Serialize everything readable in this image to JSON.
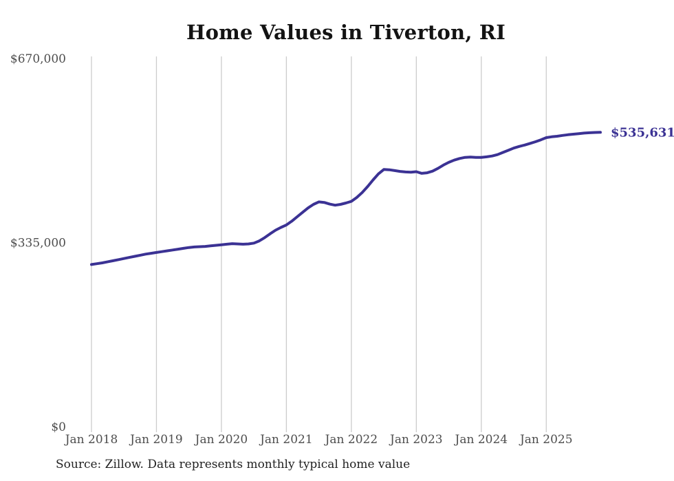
{
  "chart": {
    "title": "Home Values in Tiverton, RI",
    "source_note": "Source: Zillow. Data represents monthly typical home value",
    "end_label": "$535,631",
    "colors": {
      "line": "#3b3294",
      "grid": "#cccccc",
      "axis_label": "#4d4d4d",
      "title": "#131313",
      "source": "#222222"
    }
  },
  "chart_data": {
    "type": "line",
    "title": "Home Values in Tiverton, RI",
    "xlabel": "",
    "ylabel": "",
    "ylim": [
      0,
      670000
    ],
    "grid": "vertical-yearly",
    "legend": false,
    "y_ticks": [
      {
        "value": 0,
        "label": "$0"
      },
      {
        "value": 335000,
        "label": "$335,000"
      },
      {
        "value": 670000,
        "label": "$670,000"
      }
    ],
    "x_tick_labels": [
      "Jan 2018",
      "Jan 2019",
      "Jan 2020",
      "Jan 2021",
      "Jan 2022",
      "Jan 2023",
      "Jan 2024",
      "Jan 2025"
    ],
    "x_tick_month_indexes": [
      0,
      12,
      24,
      36,
      48,
      60,
      72,
      84
    ],
    "end_value": 535631,
    "end_value_label": "$535,631",
    "series": [
      {
        "name": "Monthly typical home value",
        "start_month": "Jan 2018",
        "end_month": "Nov 2025",
        "values": [
          295000,
          296500,
          298000,
          300000,
          302000,
          304000,
          306000,
          308000,
          310000,
          312000,
          314000,
          315500,
          317000,
          318500,
          320000,
          321500,
          323000,
          324500,
          326000,
          327000,
          327500,
          328000,
          329000,
          330000,
          331000,
          332000,
          333000,
          332500,
          332000,
          332500,
          334000,
          338000,
          344000,
          351000,
          357500,
          362500,
          367000,
          374000,
          382000,
          390000,
          398000,
          404500,
          409000,
          408000,
          405000,
          403000,
          404500,
          407000,
          410000,
          417000,
          426000,
          437000,
          449000,
          460000,
          468000,
          467500,
          466000,
          464500,
          463500,
          463000,
          464000,
          461000,
          462000,
          465000,
          470000,
          476000,
          481000,
          485000,
          488000,
          490000,
          490500,
          490000,
          490000,
          491000,
          492500,
          495000,
          499000,
          503000,
          507000,
          510000,
          512500,
          515500,
          518500,
          522000,
          526000,
          527500,
          528500,
          530000,
          531200,
          532300,
          533300,
          534200,
          534900,
          535400,
          535631
        ]
      }
    ]
  }
}
